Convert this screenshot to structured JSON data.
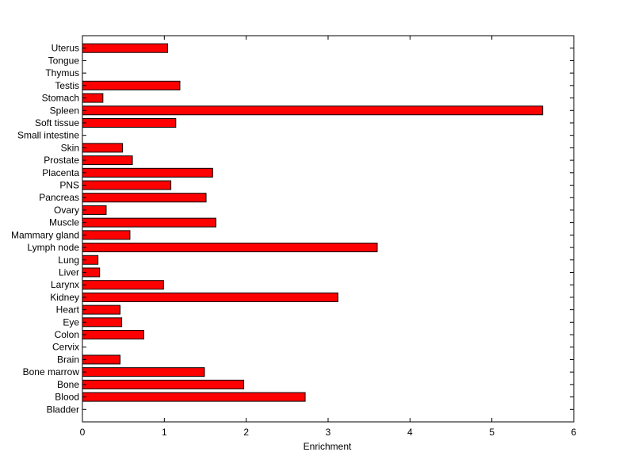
{
  "chart_data": {
    "type": "bar",
    "orientation": "horizontal",
    "title": "",
    "xlabel": "Enrichment",
    "ylabel": "",
    "xlim": [
      0,
      6
    ],
    "xticks": [
      0,
      1,
      2,
      3,
      4,
      5,
      6
    ],
    "grid": false,
    "bar_color": "#ff0000",
    "bar_edge_color": "#000000",
    "categories": [
      "Bladder",
      "Blood",
      "Bone",
      "Bone marrow",
      "Brain",
      "Cervix",
      "Colon",
      "Eye",
      "Heart",
      "Kidney",
      "Larynx",
      "Liver",
      "Lung",
      "Lymph node",
      "Mammary gland",
      "Muscle",
      "Ovary",
      "Pancreas",
      "PNS",
      "Placenta",
      "Prostate",
      "Skin",
      "Small intestine",
      "Soft tissue",
      "Spleen",
      "Stomach",
      "Testis",
      "Thymus",
      "Tongue",
      "Uterus"
    ],
    "values": [
      0,
      2.72,
      1.97,
      1.49,
      0.46,
      0,
      0.75,
      0.48,
      0.46,
      3.12,
      0.99,
      0.21,
      0.19,
      3.6,
      0.58,
      1.63,
      0.29,
      1.51,
      1.08,
      1.59,
      0.61,
      0.49,
      0,
      1.14,
      5.62,
      0.25,
      1.19,
      0,
      0,
      1.04
    ]
  }
}
